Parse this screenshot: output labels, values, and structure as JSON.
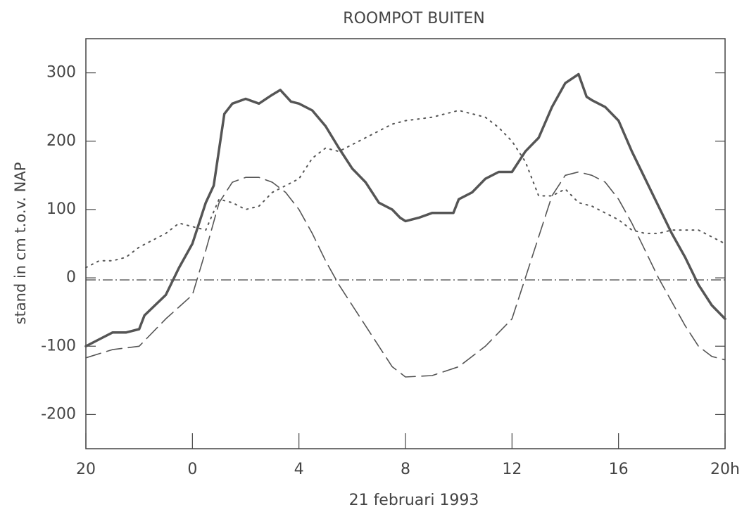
{
  "chart_data": {
    "type": "line",
    "title": "ROOMPOT BUITEN",
    "x_label": "21 februari 1993",
    "y_label": "stand in cm t.o.v. NAP",
    "xlim": [
      -4,
      20
    ],
    "ylim": [
      -250,
      350
    ],
    "xticks": [
      {
        "value": -4,
        "label": "20"
      },
      0,
      4,
      8,
      12,
      16,
      {
        "value": 20,
        "label": "20h"
      }
    ],
    "yticks": [
      300,
      200,
      100,
      0,
      -100,
      -200
    ],
    "reference_line": -3,
    "series": [
      {
        "color": "#555555",
        "style": "solid",
        "x": [
          -4,
          -3.5,
          -3,
          -2.5,
          -2,
          -1.8,
          -1,
          -0.5,
          0,
          0.5,
          0.8,
          1.2,
          1.5,
          2,
          2.5,
          3,
          3.3,
          3.7,
          4,
          4.5,
          5,
          5.5,
          6,
          6.5,
          7,
          7.5,
          7.8,
          8,
          8.5,
          9,
          9.5,
          9.8,
          10,
          10.5,
          11,
          11.5,
          12,
          12.5,
          13,
          13.5,
          14,
          14.5,
          14.8,
          15,
          15.5,
          16,
          16.5,
          17,
          17.5,
          18,
          18.5,
          19,
          19.5,
          20
        ],
        "values": [
          -100,
          -90,
          -80,
          -80,
          -75,
          -55,
          -25,
          15,
          50,
          110,
          135,
          240,
          255,
          262,
          255,
          268,
          275,
          258,
          255,
          245,
          222,
          190,
          160,
          140,
          110,
          100,
          88,
          83,
          88,
          95,
          95,
          95,
          115,
          125,
          145,
          155,
          155,
          185,
          205,
          250,
          285,
          298,
          265,
          260,
          250,
          230,
          185,
          145,
          105,
          65,
          30,
          -10,
          -40,
          -60
        ]
      },
      {
        "color": "#555555",
        "style": "dashed",
        "x": [
          -4,
          -3,
          -2,
          -1,
          0,
          0.5,
          1,
          1.5,
          2,
          2.5,
          3,
          3.5,
          4,
          4.5,
          5,
          5.5,
          6,
          7,
          7.5,
          8,
          9,
          10,
          11,
          12,
          12.5,
          13,
          13.5,
          14,
          14.5,
          15,
          15.5,
          16,
          16.5,
          17,
          17.5,
          18,
          18.5,
          19,
          19.5,
          20
        ],
        "values": [
          -117,
          -105,
          -100,
          -60,
          -25,
          40,
          110,
          140,
          147,
          147,
          140,
          125,
          100,
          65,
          25,
          -10,
          -40,
          -100,
          -130,
          -145,
          -143,
          -130,
          -100,
          -60,
          0,
          60,
          120,
          150,
          155,
          150,
          140,
          115,
          80,
          40,
          0,
          -35,
          -70,
          -100,
          -115,
          -120
        ]
      },
      {
        "color": "#555555",
        "style": "dotted",
        "x": [
          -4,
          -3.5,
          -3,
          -2.5,
          -2,
          -1,
          -0.5,
          0,
          0.5,
          1,
          1.5,
          2,
          2.5,
          3,
          4,
          4.5,
          5,
          5.5,
          6,
          7,
          7.5,
          8,
          9,
          10,
          11,
          11.5,
          12,
          12.5,
          13,
          13.5,
          14,
          14.5,
          15,
          16,
          16.5,
          17,
          17.5,
          18,
          19,
          20
        ],
        "values": [
          15,
          25,
          25,
          30,
          45,
          65,
          80,
          75,
          70,
          115,
          110,
          100,
          105,
          125,
          145,
          175,
          190,
          185,
          195,
          215,
          225,
          230,
          235,
          245,
          235,
          220,
          200,
          170,
          120,
          120,
          130,
          110,
          105,
          85,
          70,
          65,
          65,
          70,
          70,
          50
        ]
      }
    ]
  }
}
